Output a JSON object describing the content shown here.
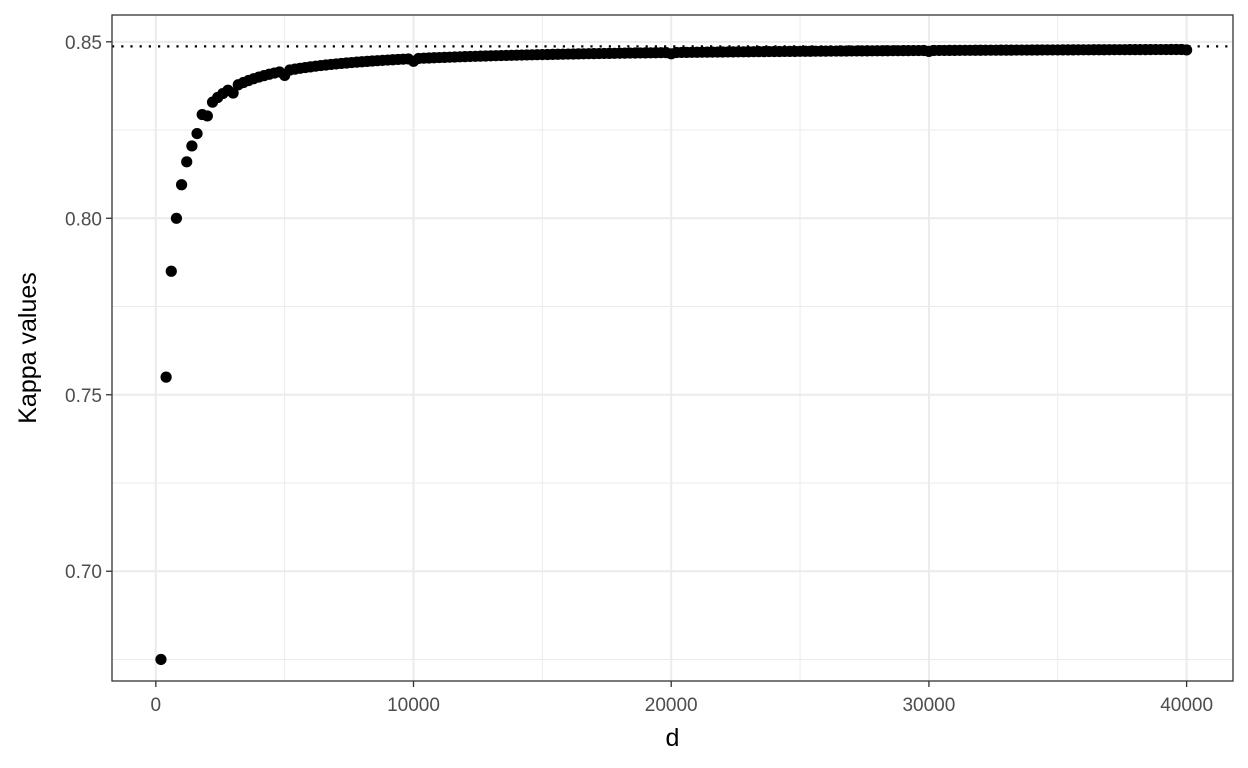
{
  "chart_data": {
    "type": "scatter",
    "title": "",
    "xlabel": "d",
    "ylabel": "Kappa values",
    "xlim": [
      -1700,
      41800
    ],
    "ylim": [
      0.6689,
      0.8576
    ],
    "x_ticks": [
      0,
      10000,
      20000,
      30000,
      40000
    ],
    "x_tick_labels": [
      "0",
      "10000",
      "20000",
      "30000",
      "40000"
    ],
    "y_ticks": [
      0.7,
      0.75,
      0.8,
      0.85
    ],
    "y_tick_labels": [
      "0.70",
      "0.75",
      "0.80",
      "0.85"
    ],
    "reference_line": {
      "y": 0.8487,
      "style": "dotted",
      "color": "#000000"
    },
    "grid": true,
    "theme": "bw",
    "point_color": "#000000",
    "series": [
      {
        "x_start": 200,
        "x_step": 200,
        "x_end": 40000,
        "highlighted_points": [
          {
            "x": 200,
            "y": 0.675
          },
          {
            "x": 400,
            "y": 0.755
          },
          {
            "x": 600,
            "y": 0.785
          },
          {
            "x": 800,
            "y": 0.8
          },
          {
            "x": 1000,
            "y": 0.8095
          },
          {
            "x": 1200,
            "y": 0.816
          },
          {
            "x": 1400,
            "y": 0.8205
          },
          {
            "x": 1600,
            "y": 0.824
          },
          {
            "x": 2000,
            "y": 0.829
          },
          {
            "x": 3000,
            "y": 0.8355
          },
          {
            "x": 5000,
            "y": 0.8405
          },
          {
            "x": 10000,
            "y": 0.8445
          },
          {
            "x": 20000,
            "y": 0.8466
          },
          {
            "x": 30000,
            "y": 0.8473
          },
          {
            "x": 40000,
            "y": 0.8477
          }
        ],
        "model": {
          "asymptote": 0.8487,
          "coefficient": 34.75
        }
      }
    ]
  }
}
